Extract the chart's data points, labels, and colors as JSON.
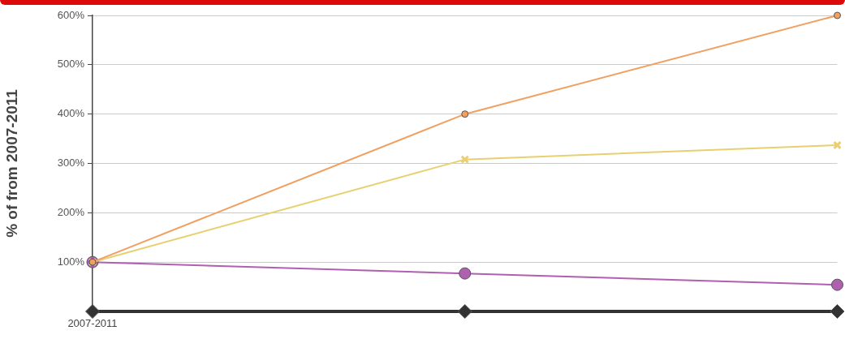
{
  "chart_data": {
    "type": "line",
    "ylabel": "% of from 2007-2011",
    "categories": [
      "2007-2011",
      null,
      null
    ],
    "series": [
      {
        "color": "#f0a060",
        "marker": "circle",
        "values": [
          100,
          400,
          600
        ]
      },
      {
        "color": "#e8d070",
        "marker": "cross",
        "values": [
          100,
          308,
          337
        ]
      },
      {
        "color": "#b060b0",
        "marker": "circle",
        "values": [
          100,
          77,
          54
        ]
      },
      {
        "color": "#333333",
        "marker": "diamond",
        "values": [
          0,
          0,
          0
        ]
      }
    ],
    "ylim": [
      0,
      600
    ],
    "yticks": [
      {
        "value": 0,
        "label": null
      },
      {
        "value": 100,
        "label": "100%"
      },
      {
        "value": 200,
        "label": "200%"
      },
      {
        "value": 300,
        "label": "300%"
      },
      {
        "value": 400,
        "label": "400%"
      },
      {
        "value": 500,
        "label": "500%"
      },
      {
        "value": 600,
        "label": "600%"
      }
    ],
    "grid": "y",
    "legend": false
  }
}
